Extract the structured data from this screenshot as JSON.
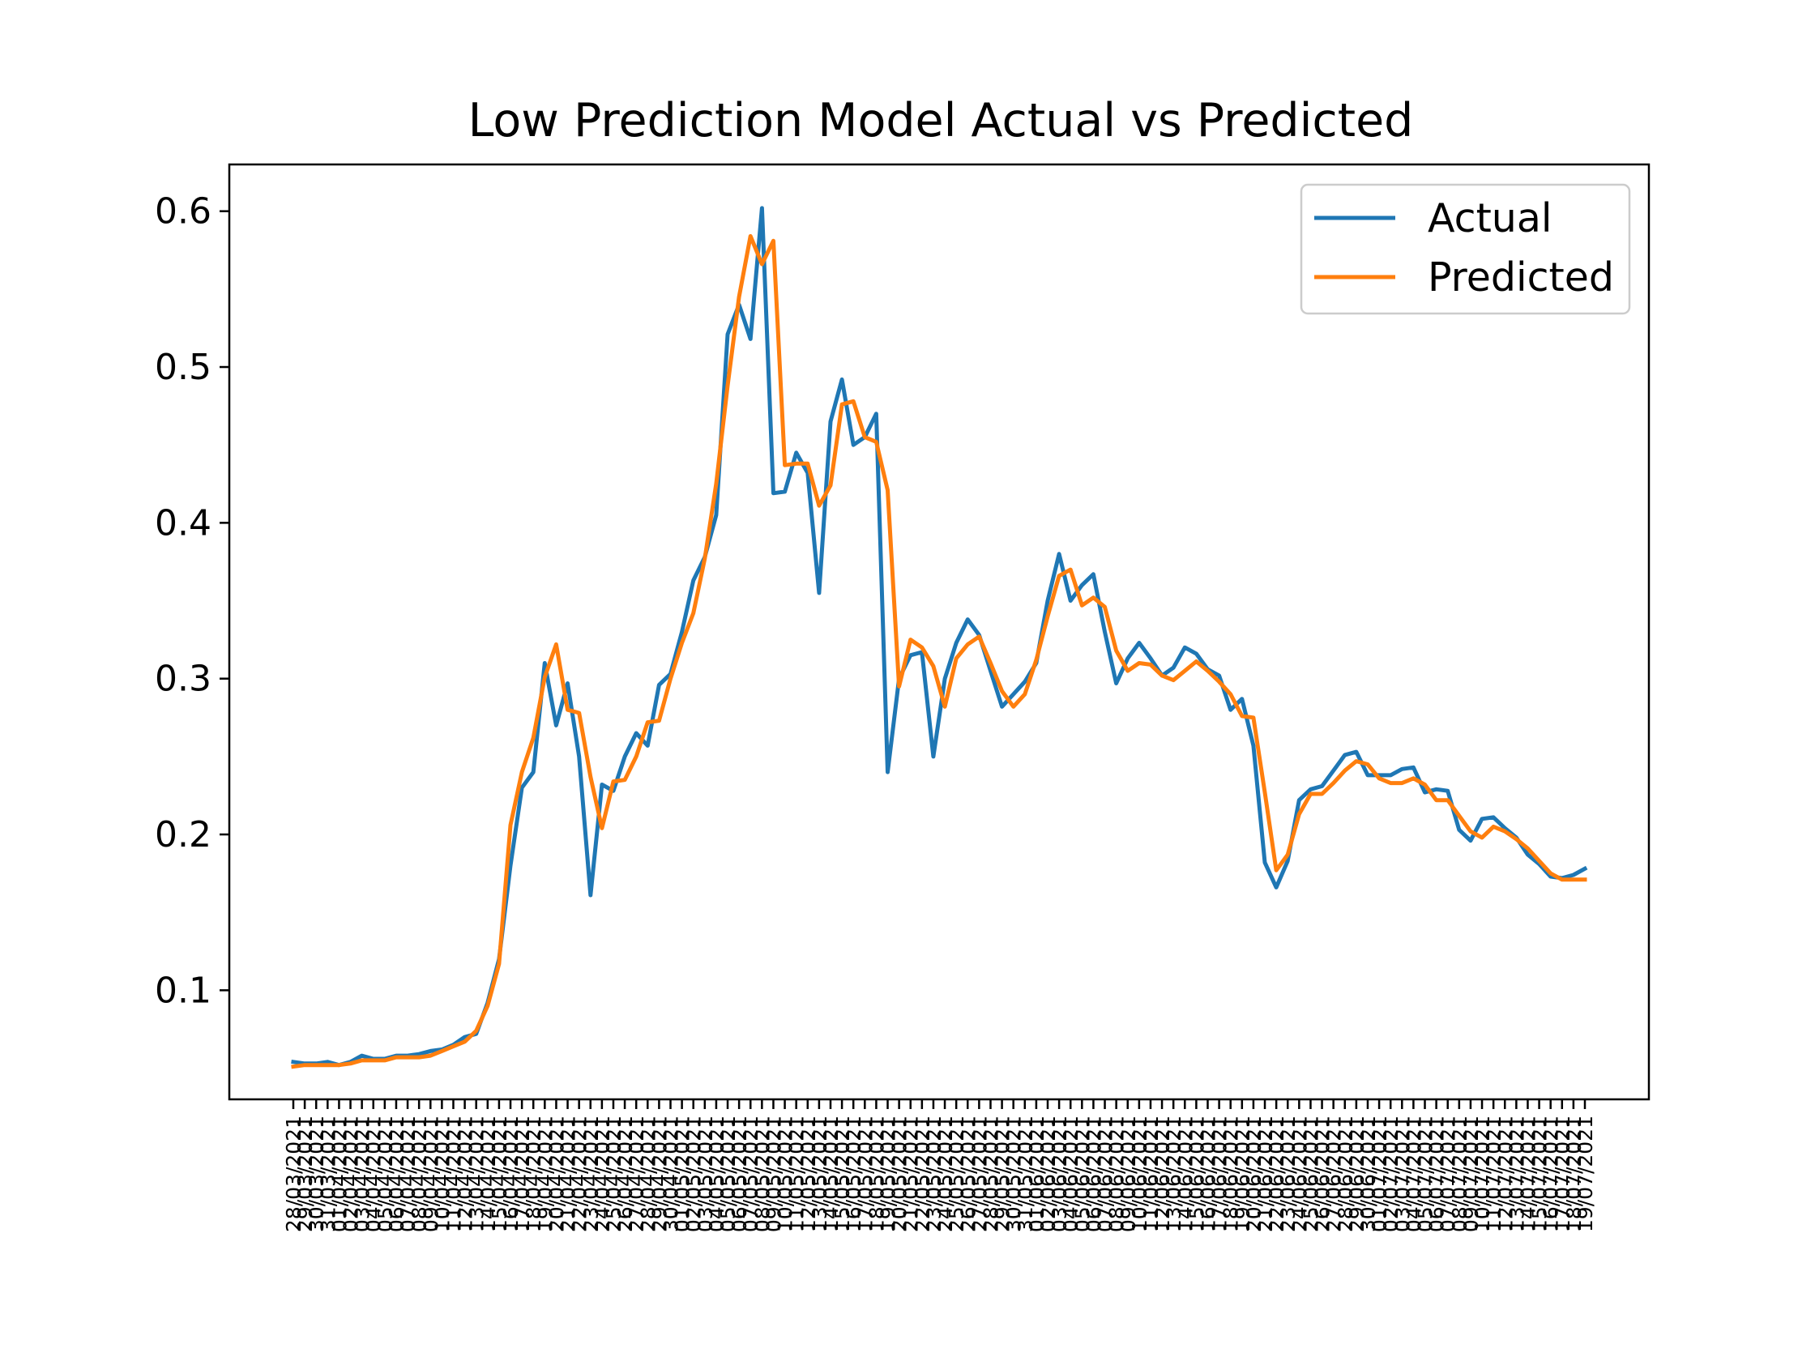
{
  "chart_data": {
    "type": "line",
    "title": "Low Prediction Model Actual vs Predicted",
    "xlabel": "",
    "ylabel": "",
    "ylim": [
      0.03,
      0.63
    ],
    "yticks": [
      0.1,
      0.2,
      0.3,
      0.4,
      0.5,
      0.6
    ],
    "ytick_labels": [
      "0.1",
      "0.2",
      "0.3",
      "0.4",
      "0.5",
      "0.6"
    ],
    "grid": false,
    "legend": "upper right",
    "categories": [
      "28/03/2021",
      "29/03/2021",
      "30/03/2021",
      "31/03/2021",
      "01/04/2021",
      "02/04/2021",
      "03/04/2021",
      "04/04/2021",
      "05/04/2021",
      "06/04/2021",
      "07/04/2021",
      "08/04/2021",
      "09/04/2021",
      "10/04/2021",
      "11/04/2021",
      "12/04/2021",
      "13/04/2021",
      "14/04/2021",
      "15/04/2021",
      "16/04/2021",
      "17/04/2021",
      "18/04/2021",
      "19/04/2021",
      "20/04/2021",
      "21/04/2021",
      "22/04/2021",
      "23/04/2021",
      "24/04/2021",
      "25/04/2021",
      "26/04/2021",
      "27/04/2021",
      "28/04/2021",
      "29/04/2021",
      "30/04/2021",
      "01/05/2021",
      "02/05/2021",
      "03/05/2021",
      "04/05/2021",
      "05/05/2021",
      "06/05/2021",
      "07/05/2021",
      "08/05/2021",
      "09/05/2021",
      "10/05/2021",
      "11/05/2021",
      "12/05/2021",
      "13/05/2021",
      "14/05/2021",
      "15/05/2021",
      "16/05/2021",
      "17/05/2021",
      "18/05/2021",
      "19/05/2021",
      "20/05/2021",
      "21/05/2021",
      "22/05/2021",
      "23/05/2021",
      "24/05/2021",
      "25/05/2021",
      "26/05/2021",
      "27/05/2021",
      "28/05/2021",
      "29/05/2021",
      "30/05/2021",
      "31/05/2021",
      "01/06/2021",
      "02/06/2021",
      "03/06/2021",
      "04/06/2021",
      "05/06/2021",
      "06/06/2021",
      "07/06/2021",
      "08/06/2021",
      "09/06/2021",
      "10/06/2021",
      "11/06/2021",
      "12/06/2021",
      "13/06/2021",
      "14/06/2021",
      "15/06/2021",
      "16/06/2021",
      "17/06/2021",
      "18/06/2021",
      "19/06/2021",
      "20/06/2021",
      "21/06/2021",
      "22/06/2021",
      "23/06/2021",
      "24/06/2021",
      "25/06/2021",
      "26/06/2021",
      "27/06/2021",
      "28/06/2021",
      "29/06/2021",
      "30/06/2021",
      "01/07/2021",
      "02/07/2021",
      "03/07/2021",
      "04/07/2021",
      "05/07/2021",
      "06/07/2021",
      "07/07/2021",
      "08/07/2021",
      "09/07/2021",
      "10/07/2021",
      "11/07/2021",
      "12/07/2021",
      "13/07/2021",
      "14/07/2021",
      "15/07/2021",
      "16/07/2021",
      "17/07/2021",
      "18/07/2021",
      "19/07/2021"
    ],
    "series": [
      {
        "name": "Actual",
        "color": "#1f77b4",
        "values": [
          0.054,
          0.053,
          0.053,
          0.054,
          0.052,
          0.054,
          0.058,
          0.056,
          0.056,
          0.058,
          0.058,
          0.059,
          0.061,
          0.062,
          0.065,
          0.07,
          0.072,
          0.092,
          0.12,
          0.18,
          0.23,
          0.24,
          0.31,
          0.27,
          0.297,
          0.25,
          0.161,
          0.232,
          0.228,
          0.25,
          0.265,
          0.257,
          0.296,
          0.303,
          0.33,
          0.363,
          0.378,
          0.405,
          0.521,
          0.54,
          0.518,
          0.602,
          0.419,
          0.42,
          0.445,
          0.432,
          0.355,
          0.465,
          0.492,
          0.45,
          0.455,
          0.47,
          0.24,
          0.3,
          0.315,
          0.317,
          0.25,
          0.3,
          0.323,
          0.338,
          0.328,
          0.305,
          0.282,
          0.29,
          0.298,
          0.31,
          0.35,
          0.38,
          0.35,
          0.36,
          0.367,
          0.33,
          0.297,
          0.313,
          0.323,
          0.313,
          0.302,
          0.307,
          0.32,
          0.316,
          0.306,
          0.302,
          0.28,
          0.287,
          0.257,
          0.182,
          0.166,
          0.183,
          0.222,
          0.229,
          0.231,
          0.241,
          0.251,
          0.253,
          0.238,
          0.238,
          0.238,
          0.242,
          0.243,
          0.227,
          0.229,
          0.228,
          0.203,
          0.196,
          0.21,
          0.211,
          0.204,
          0.198,
          0.187,
          0.181,
          0.173,
          0.172,
          0.174,
          0.178
        ]
      },
      {
        "name": "Predicted",
        "color": "#ff7f0e",
        "values": [
          0.051,
          0.052,
          0.052,
          0.052,
          0.052,
          0.053,
          0.055,
          0.055,
          0.055,
          0.057,
          0.057,
          0.057,
          0.058,
          0.061,
          0.064,
          0.067,
          0.074,
          0.09,
          0.117,
          0.206,
          0.24,
          0.262,
          0.301,
          0.322,
          0.28,
          0.278,
          0.237,
          0.204,
          0.234,
          0.235,
          0.25,
          0.272,
          0.273,
          0.3,
          0.323,
          0.342,
          0.377,
          0.425,
          0.488,
          0.545,
          0.584,
          0.566,
          0.581,
          0.437,
          0.438,
          0.438,
          0.411,
          0.424,
          0.476,
          0.478,
          0.455,
          0.452,
          0.421,
          0.295,
          0.325,
          0.32,
          0.308,
          0.282,
          0.313,
          0.322,
          0.327,
          0.31,
          0.292,
          0.282,
          0.29,
          0.312,
          0.34,
          0.366,
          0.37,
          0.347,
          0.352,
          0.346,
          0.318,
          0.305,
          0.31,
          0.309,
          0.302,
          0.299,
          0.305,
          0.311,
          0.305,
          0.298,
          0.29,
          0.276,
          0.275,
          0.227,
          0.177,
          0.187,
          0.213,
          0.226,
          0.226,
          0.233,
          0.241,
          0.247,
          0.245,
          0.236,
          0.233,
          0.233,
          0.236,
          0.232,
          0.222,
          0.222,
          0.212,
          0.202,
          0.198,
          0.205,
          0.202,
          0.197,
          0.191,
          0.183,
          0.175,
          0.171,
          0.171,
          0.171
        ]
      }
    ]
  }
}
